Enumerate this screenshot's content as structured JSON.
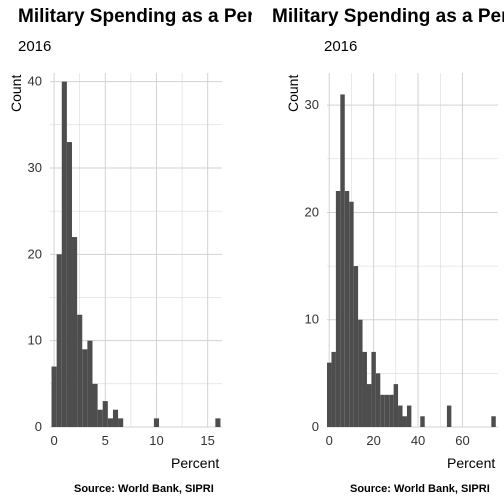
{
  "charts": [
    {
      "title": "Military Spending as a Percent of GDP",
      "subtitle": "2016",
      "xlabel": "Percent",
      "ylabel": "Count",
      "caption": "Source: World Bank, SIPRI"
    },
    {
      "title": "Military Spending as a Percent of Government Spending",
      "subtitle": "2016",
      "xlabel": "Percent",
      "ylabel": "Count",
      "caption": "Source: World Bank, SIPRI"
    }
  ],
  "colors": {
    "bar": "#4d4d4d",
    "grid": "#d3d3d3",
    "background": "#ffffff"
  },
  "chart_data": [
    {
      "type": "bar",
      "title": "Military Spending as a Percent of GDP",
      "subtitle": "2016",
      "xlabel": "Percent",
      "ylabel": "Count",
      "xlim": [
        -0.4,
        16.4
      ],
      "ylim": [
        0,
        41
      ],
      "xticks": [
        0,
        5,
        10,
        15
      ],
      "yticks": [
        0,
        10,
        20,
        30,
        40
      ],
      "grid": true,
      "bin_width": 0.5,
      "bins": [
        {
          "x0": -0.25,
          "count": 7
        },
        {
          "x0": 0.25,
          "count": 20
        },
        {
          "x0": 0.75,
          "count": 40
        },
        {
          "x0": 1.25,
          "count": 33
        },
        {
          "x0": 1.75,
          "count": 22
        },
        {
          "x0": 2.25,
          "count": 13
        },
        {
          "x0": 2.75,
          "count": 9
        },
        {
          "x0": 3.25,
          "count": 10
        },
        {
          "x0": 3.75,
          "count": 5
        },
        {
          "x0": 4.25,
          "count": 2
        },
        {
          "x0": 4.75,
          "count": 3
        },
        {
          "x0": 5.25,
          "count": 1
        },
        {
          "x0": 5.75,
          "count": 2
        },
        {
          "x0": 6.25,
          "count": 1
        },
        {
          "x0": 9.75,
          "count": 1
        },
        {
          "x0": 15.75,
          "count": 1
        }
      ]
    },
    {
      "type": "bar",
      "title": "Military Spending as a Percent of Government Spending",
      "subtitle": "2016",
      "xlabel": "Percent",
      "ylabel": "Count",
      "xlim": [
        -1,
        76
      ],
      "ylim": [
        0,
        33
      ],
      "xticks": [
        0,
        20,
        40,
        60
      ],
      "yticks": [
        0,
        10,
        20,
        30
      ],
      "grid": true,
      "bin_width": 2,
      "bins": [
        {
          "x0": -1,
          "count": 6
        },
        {
          "x0": 1,
          "count": 7
        },
        {
          "x0": 3,
          "count": 22
        },
        {
          "x0": 5,
          "count": 31
        },
        {
          "x0": 7,
          "count": 22
        },
        {
          "x0": 9,
          "count": 21
        },
        {
          "x0": 11,
          "count": 15
        },
        {
          "x0": 13,
          "count": 10
        },
        {
          "x0": 15,
          "count": 7
        },
        {
          "x0": 17,
          "count": 4
        },
        {
          "x0": 19,
          "count": 7
        },
        {
          "x0": 21,
          "count": 5
        },
        {
          "x0": 23,
          "count": 3
        },
        {
          "x0": 25,
          "count": 3
        },
        {
          "x0": 27,
          "count": 3
        },
        {
          "x0": 29,
          "count": 4
        },
        {
          "x0": 31,
          "count": 2
        },
        {
          "x0": 33,
          "count": 1
        },
        {
          "x0": 35,
          "count": 2
        },
        {
          "x0": 41,
          "count": 1
        },
        {
          "x0": 53,
          "count": 2
        },
        {
          "x0": 73,
          "count": 1
        }
      ]
    }
  ]
}
